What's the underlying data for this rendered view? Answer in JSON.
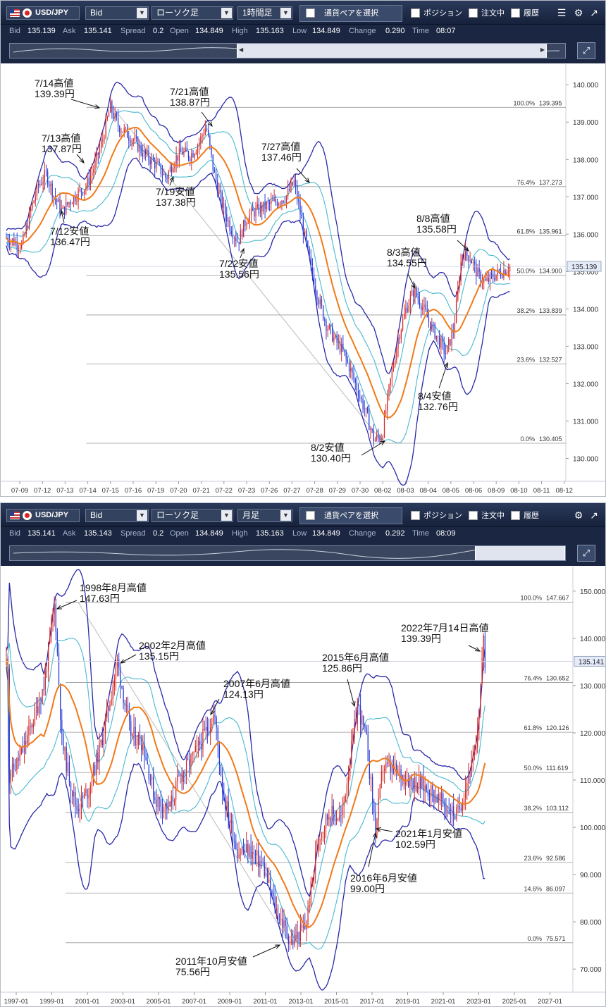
{
  "panels": [
    {
      "toolbar": {
        "pair": "USD/JPY",
        "side": "Bid",
        "chart_kind": "ローソク足",
        "interval": "1時間足",
        "select_pair_button": "通貨ペアを選択",
        "checkboxes": [
          "ポジション",
          "注文中",
          "履歴"
        ]
      },
      "info": {
        "bid_label": "Bid",
        "bid": "135.139",
        "ask_label": "Ask",
        "ask": "135.141",
        "spread_label": "Spread",
        "spread": "0.2",
        "open_label": "Open",
        "open": "134.849",
        "high_label": "High",
        "high": "135.163",
        "low_label": "Low",
        "low": "134.849",
        "change_label": "Change",
        "change": "0.290",
        "time_label": "Time",
        "time": "08:07"
      },
      "current_price_label": "135.139"
    },
    {
      "toolbar": {
        "pair": "USD/JPY",
        "side": "Bid",
        "chart_kind": "ローソク足",
        "interval": "月足",
        "select_pair_button": "通貨ペアを選択",
        "checkboxes": [
          "ポジション",
          "注文中",
          "履歴"
        ]
      },
      "info": {
        "bid_label": "Bid",
        "bid": "135.141",
        "ask_label": "Ask",
        "ask": "135.143",
        "spread_label": "Spread",
        "spread": "0.2",
        "open_label": "Open",
        "open": "134.849",
        "high_label": "High",
        "high": "135.163",
        "low_label": "Low",
        "low": "134.849",
        "change_label": "Change",
        "change": "0.292",
        "time_label": "Time",
        "time": "08:09"
      },
      "current_price_label": "135.141"
    }
  ],
  "chart_data": [
    {
      "type": "candlestick",
      "timeframe": "1時間足",
      "ylim": [
        129.5,
        140.4
      ],
      "y_ticks": [
        "140.000",
        "139.000",
        "138.000",
        "137.000",
        "136.000",
        "135.000",
        "134.000",
        "133.000",
        "132.000",
        "131.000",
        "130.000"
      ],
      "x_ticks": [
        "07-09",
        "07-12",
        "07-13",
        "07-14",
        "07-15",
        "07-16",
        "07-19",
        "07-20",
        "07-21",
        "07-22",
        "07-23",
        "07-26",
        "07-27",
        "07-28",
        "07-29",
        "07-30",
        "08-02",
        "08-03",
        "08-04",
        "08-05",
        "08-06",
        "08-09",
        "08-10",
        "08-11",
        "08-12"
      ],
      "price_path": [
        [
          0,
          135.9
        ],
        [
          2,
          135.7
        ],
        [
          3,
          136.6
        ],
        [
          4,
          137.3
        ],
        [
          5,
          137.6
        ],
        [
          6,
          137.0
        ],
        [
          7,
          136.6
        ],
        [
          8,
          136.9
        ],
        [
          10,
          137.3
        ],
        [
          11,
          137.8
        ],
        [
          12,
          138.5
        ],
        [
          13,
          139.4
        ],
        [
          14,
          138.9
        ],
        [
          15,
          138.7
        ],
        [
          16,
          138.5
        ],
        [
          17,
          138.2
        ],
        [
          18,
          138.0
        ],
        [
          19,
          137.8
        ],
        [
          20,
          137.5
        ],
        [
          21,
          138.0
        ],
        [
          22,
          138.2
        ],
        [
          23,
          138.1
        ],
        [
          24,
          138.4
        ],
        [
          25,
          138.9
        ],
        [
          26,
          137.6
        ],
        [
          27,
          136.8
        ],
        [
          28,
          136.2
        ],
        [
          29,
          135.8
        ],
        [
          30,
          136.4
        ],
        [
          31,
          136.6
        ],
        [
          32,
          136.7
        ],
        [
          33,
          136.8
        ],
        [
          34,
          136.9
        ],
        [
          35,
          137.0
        ],
        [
          36,
          137.4
        ],
        [
          37,
          136.3
        ],
        [
          38,
          135.2
        ],
        [
          39,
          134.3
        ],
        [
          40,
          133.6
        ],
        [
          41,
          133.2
        ],
        [
          42,
          132.9
        ],
        [
          43,
          132.4
        ],
        [
          44,
          131.8
        ],
        [
          45,
          131.2
        ],
        [
          46,
          130.5
        ],
        [
          47,
          130.6
        ],
        [
          48,
          132.0
        ],
        [
          49,
          133.2
        ],
        [
          50,
          134.0
        ],
        [
          51,
          134.5
        ],
        [
          52,
          134.1
        ],
        [
          53,
          133.6
        ],
        [
          54,
          133.2
        ],
        [
          55,
          132.8
        ],
        [
          56,
          133.5
        ],
        [
          57,
          135.5
        ],
        [
          58,
          135.4
        ],
        [
          59,
          134.9
        ],
        [
          60,
          134.7
        ],
        [
          61,
          134.9
        ],
        [
          62,
          135.0
        ],
        [
          63,
          135.139
        ]
      ],
      "fibonacci": [
        {
          "label": "100.0%",
          "value": "139.395"
        },
        {
          "label": "76.4%",
          "value": "137.273"
        },
        {
          "label": "61.8%",
          "value": "135.961"
        },
        {
          "label": "50.0%",
          "value": "134.900"
        },
        {
          "label": "38.2%",
          "value": "133.839"
        },
        {
          "label": "23.6%",
          "value": "132.527"
        },
        {
          "label": "0.0%",
          "value": "130.405"
        }
      ],
      "annotations": [
        {
          "date": "7/14高値",
          "price": "139.39円"
        },
        {
          "date": "7/13高値",
          "price": "137.87円"
        },
        {
          "date": "7/12安値",
          "price": "136.47円"
        },
        {
          "date": "7/21高値",
          "price": "138.87円"
        },
        {
          "date": "7/19安値",
          "price": "137.38円"
        },
        {
          "date": "7/27高値",
          "price": "137.46円"
        },
        {
          "date": "7/22安値",
          "price": "135.56円"
        },
        {
          "date": "8/8高値",
          "price": "135.58円"
        },
        {
          "date": "8/3高値",
          "price": "134.55円"
        },
        {
          "date": "8/4安値",
          "price": "132.76円"
        },
        {
          "date": "8/2安値",
          "price": "130.40円"
        }
      ],
      "current_price": 135.139
    },
    {
      "type": "candlestick",
      "timeframe": "月足",
      "ylim": [
        66,
        154
      ],
      "y_ticks": [
        "150.000",
        "140.000",
        "130.000",
        "120.000",
        "110.000",
        "100.000",
        "90.000",
        "80.000",
        "70.000"
      ],
      "x_ticks": [
        "1997-01",
        "1999-01",
        "2001-01",
        "2003-01",
        "2005-01",
        "2007-01",
        "2009-01",
        "2011-01",
        "2013-01",
        "2015-01",
        "2017-01",
        "2019-01",
        "2021-01",
        "2023-01",
        "2025-01",
        "2027-01"
      ],
      "price_path": [
        [
          1996.0,
          110
        ],
        [
          1996.8,
          116
        ],
        [
          1997.5,
          124
        ],
        [
          1998.0,
          130
        ],
        [
          1998.6,
          147.6
        ],
        [
          1999.0,
          118
        ],
        [
          1999.8,
          104
        ],
        [
          2000.5,
          108
        ],
        [
          2001.2,
          118
        ],
        [
          2002.1,
          135.1
        ],
        [
          2002.8,
          120
        ],
        [
          2003.5,
          118
        ],
        [
          2004.2,
          106
        ],
        [
          2005.0,
          104
        ],
        [
          2005.5,
          110
        ],
        [
          2006.5,
          116
        ],
        [
          2007.5,
          124.1
        ],
        [
          2008.0,
          107
        ],
        [
          2008.8,
          95
        ],
        [
          2009.5,
          95
        ],
        [
          2010.2,
          92
        ],
        [
          2010.9,
          83
        ],
        [
          2011.8,
          75.6
        ],
        [
          2012.6,
          79
        ],
        [
          2013.3,
          98
        ],
        [
          2013.9,
          103
        ],
        [
          2014.6,
          102
        ],
        [
          2015.5,
          125.9
        ],
        [
          2016.0,
          118
        ],
        [
          2016.5,
          99.0
        ],
        [
          2016.9,
          113
        ],
        [
          2017.5,
          112
        ],
        [
          2018.5,
          110
        ],
        [
          2019.5,
          108
        ],
        [
          2020.5,
          104
        ],
        [
          2021.05,
          102.6
        ],
        [
          2021.6,
          110
        ],
        [
          2022.1,
          116
        ],
        [
          2022.5,
          139.4
        ],
        [
          2022.6,
          135.14
        ]
      ],
      "fibonacci": [
        {
          "label": "100.0%",
          "value": "147.667"
        },
        {
          "label": "76.4%",
          "value": "130.652"
        },
        {
          "label": "61.8%",
          "value": "120.126"
        },
        {
          "label": "50.0%",
          "value": "111.619"
        },
        {
          "label": "38.2%",
          "value": "103.112"
        },
        {
          "label": "23.6%",
          "value": "92.586"
        },
        {
          "label": "14.6%",
          "value": "86.097"
        },
        {
          "label": "0.0%",
          "value": "75.571"
        }
      ],
      "annotations": [
        {
          "date": "1998年8月高値",
          "price": "147.63円"
        },
        {
          "date": "2002年2月高値",
          "price": "135.15円"
        },
        {
          "date": "2007年6月高値",
          "price": "124.13円"
        },
        {
          "date": "2011年10月安値",
          "price": "75.56円"
        },
        {
          "date": "2015年6月高値",
          "price": "125.86円"
        },
        {
          "date": "2016年6月安値",
          "price": "99.00円"
        },
        {
          "date": "2021年1月安値",
          "price": "102.59円"
        },
        {
          "date": "2022年7月14日高値",
          "price": "139.39円"
        }
      ],
      "current_price": 135.141
    }
  ],
  "colors": {
    "candle_up": "#d42a2a",
    "candle_down": "#2b3bd6",
    "moving_average": "#f07a1a",
    "inner_band": "#48b8d0",
    "outer_band": "#2828a8",
    "fib_line": "#9a9a9a",
    "toolbar_bg": "#1b2642"
  },
  "icons": [
    "settings-gear-icon",
    "popout-icon",
    "menu-icon",
    "expand-icon"
  ]
}
